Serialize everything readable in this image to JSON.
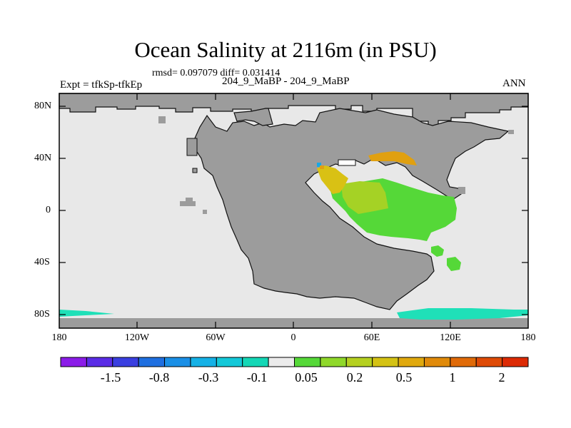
{
  "title": "Ocean Salinity at 2116m (in PSU)",
  "stats": "rmsd= 0.097079 diff= 0.031414",
  "left_label": "Expt = tfkSp-tfkEp",
  "center_label": "204_9_MaBP - 204_9_MaBP",
  "right_label": "ANN",
  "lat_labels": [
    "80N",
    "40N",
    "0",
    "40S",
    "80S"
  ],
  "lon_labels": [
    "180",
    "120W",
    "60W",
    "0",
    "60E",
    "120E",
    "180"
  ],
  "colorbar": {
    "colors": [
      "#8b1ce8",
      "#5a2ce6",
      "#3a3fe0",
      "#1f6fe0",
      "#1a8fe6",
      "#15b1e6",
      "#14c8d8",
      "#14d7b6",
      "#ebebeb",
      "#55d838",
      "#8fd82a",
      "#b5d020",
      "#d4c214",
      "#e0a90e",
      "#e08a0a",
      "#e06a08",
      "#de4a06",
      "#dc2a04"
    ],
    "labels": [
      "-1.5",
      "-0.8",
      "-0.3",
      "-0.1",
      "0.05",
      "0.2",
      "0.5",
      "1",
      "2"
    ]
  },
  "map_colors": {
    "ocean": "#e8e8e8",
    "land": "#9c9c9c",
    "teal": "#1fe0b8",
    "green": "#55d838",
    "yellowgreen": "#a5d225",
    "yellow": "#d9c114",
    "orange": "#e0a010",
    "blue": "#18a8e6"
  }
}
